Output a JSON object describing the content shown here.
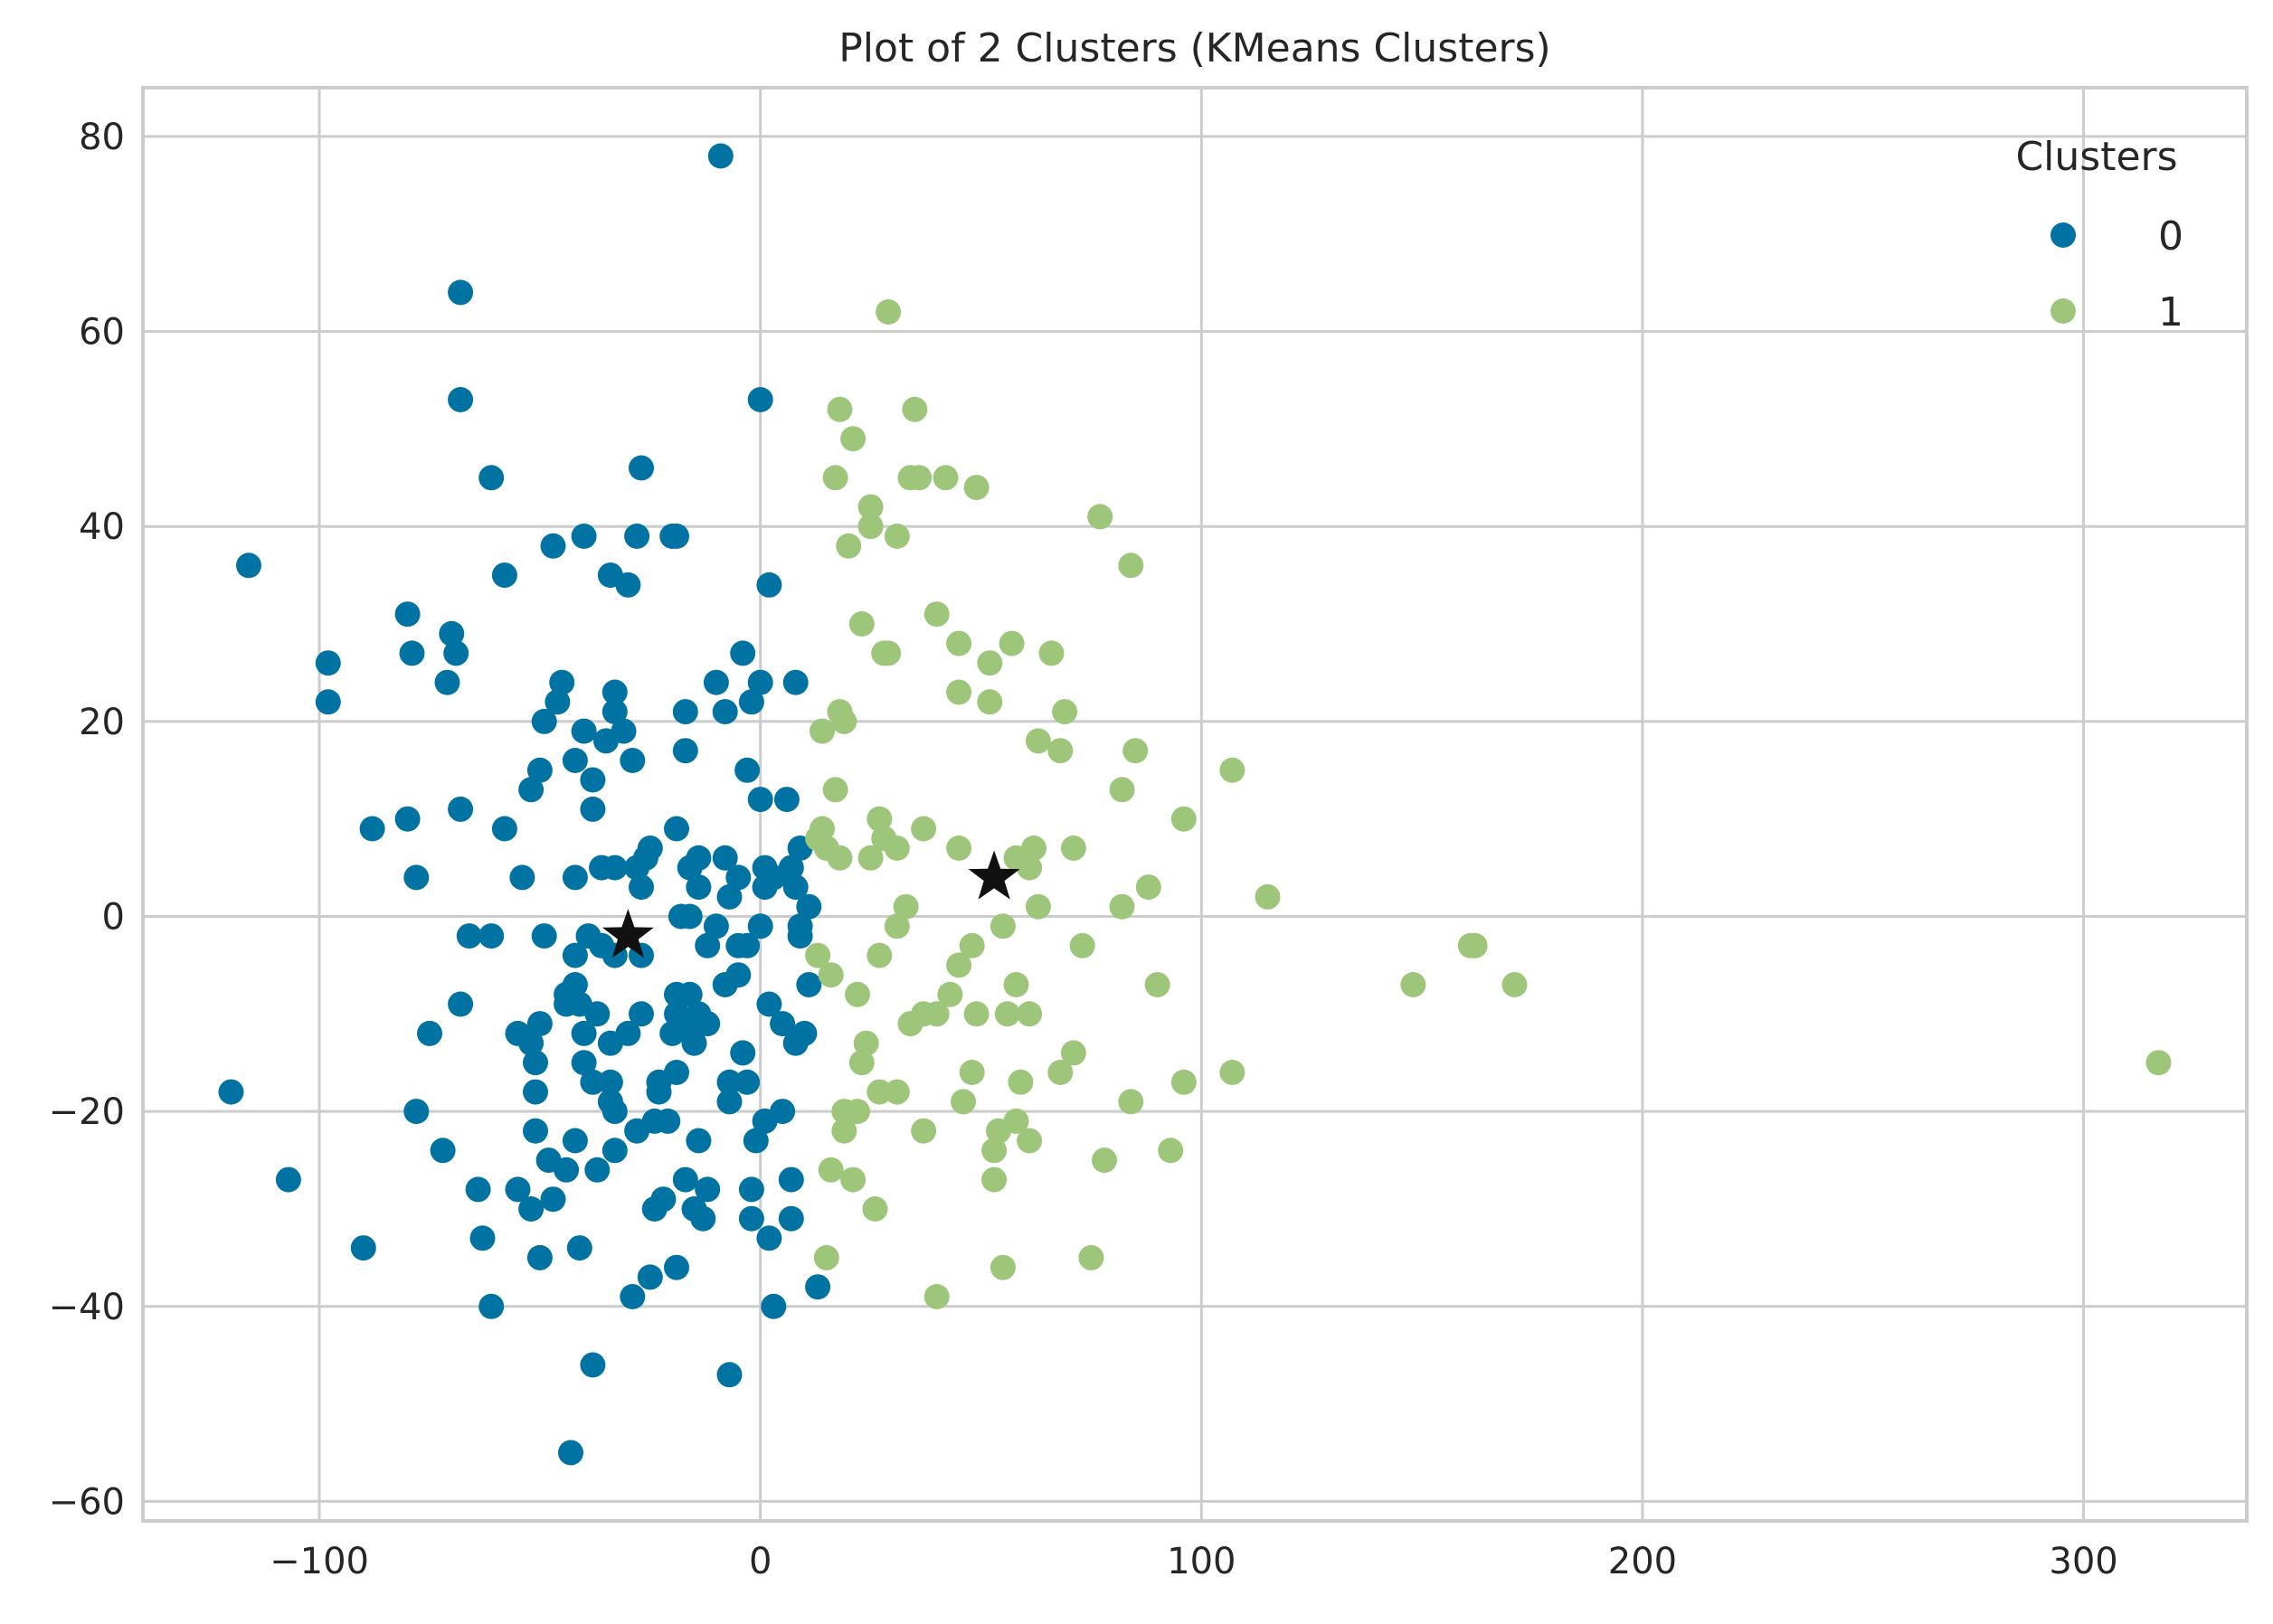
{
  "chart_data": {
    "type": "scatter",
    "title": "Plot of 2 Clusters (KMeans Clusters)",
    "xlabel": "",
    "ylabel": "",
    "xlim": [
      -140,
      337
    ],
    "ylim": [
      -62,
      85
    ],
    "xticks": [
      -100,
      0,
      100,
      200,
      300
    ],
    "yticks": [
      -60,
      -40,
      -20,
      0,
      20,
      40,
      60,
      80
    ],
    "xtick_labels": [
      "−100",
      "0",
      "100",
      "200",
      "300"
    ],
    "ytick_labels": [
      "−60",
      "−40",
      "−20",
      "0",
      "20",
      "40",
      "60",
      "80"
    ],
    "grid": true,
    "legend": {
      "title": "Clusters",
      "placement": "top-right",
      "entries": [
        "0",
        "1"
      ]
    },
    "colors": {
      "cluster_0": "#0173a3",
      "cluster_1": "#9ec67a",
      "centroid": "#111111",
      "grid": "#cccccc",
      "text": "#262626"
    },
    "series": [
      {
        "name": "0",
        "points": [
          [
            -9,
            78
          ],
          [
            -68,
            64
          ],
          [
            -68,
            53
          ],
          [
            0,
            53
          ],
          [
            -61,
            45
          ],
          [
            -27,
            46
          ],
          [
            -116,
            36
          ],
          [
            -58,
            35
          ],
          [
            -47,
            38
          ],
          [
            -40,
            39
          ],
          [
            -34,
            35
          ],
          [
            -30,
            34
          ],
          [
            -28,
            39
          ],
          [
            -20,
            39
          ],
          [
            -19,
            39
          ],
          [
            2,
            34
          ],
          [
            -80,
            31
          ],
          [
            -70,
            29
          ],
          [
            -69,
            27
          ],
          [
            -79,
            27
          ],
          [
            -71,
            24
          ],
          [
            -98,
            26
          ],
          [
            -98,
            22
          ],
          [
            -4,
            27
          ],
          [
            -45,
            24
          ],
          [
            -33,
            23
          ],
          [
            -10,
            24
          ],
          [
            -2,
            22
          ],
          [
            0,
            24
          ],
          [
            8,
            24
          ],
          [
            -46,
            22
          ],
          [
            -49,
            20
          ],
          [
            -40,
            19
          ],
          [
            -33,
            21
          ],
          [
            -17,
            21
          ],
          [
            -31,
            19
          ],
          [
            -8,
            21
          ],
          [
            -35,
            18
          ],
          [
            -42,
            16
          ],
          [
            -50,
            15
          ],
          [
            -29,
            16
          ],
          [
            -17,
            17
          ],
          [
            -3,
            15
          ],
          [
            -52,
            13
          ],
          [
            -38,
            14
          ],
          [
            -38,
            11
          ],
          [
            0,
            12
          ],
          [
            6,
            12
          ],
          [
            -68,
            11
          ],
          [
            -80,
            10
          ],
          [
            -88,
            9
          ],
          [
            -58,
            9
          ],
          [
            -78,
            4
          ],
          [
            -54,
            4
          ],
          [
            -42,
            4
          ],
          [
            -19,
            9
          ],
          [
            -25,
            7
          ],
          [
            -36,
            5
          ],
          [
            -33,
            5
          ],
          [
            -28,
            5
          ],
          [
            -26,
            6
          ],
          [
            -14,
            6
          ],
          [
            -8,
            6
          ],
          [
            -16,
            5
          ],
          [
            -5,
            4
          ],
          [
            1,
            5
          ],
          [
            3,
            4
          ],
          [
            7,
            5
          ],
          [
            9,
            7
          ],
          [
            -14,
            3
          ],
          [
            -7,
            2
          ],
          [
            1,
            3
          ],
          [
            8,
            3
          ],
          [
            -27,
            3
          ],
          [
            11,
            1
          ],
          [
            -18,
            0
          ],
          [
            -16,
            0
          ],
          [
            -10,
            -1
          ],
          [
            0,
            -1
          ],
          [
            9,
            -1
          ],
          [
            -66,
            -2
          ],
          [
            -61,
            -2
          ],
          [
            -49,
            -2
          ],
          [
            -39,
            -2
          ],
          [
            -36,
            -3
          ],
          [
            -33,
            -4
          ],
          [
            -27,
            -4
          ],
          [
            -12,
            -3
          ],
          [
            -5,
            -3
          ],
          [
            -3,
            -3
          ],
          [
            9,
            -2
          ],
          [
            -42,
            -4
          ],
          [
            -42,
            -7
          ],
          [
            -44,
            -8
          ],
          [
            -41,
            -9
          ],
          [
            -68,
            -9
          ],
          [
            -75,
            -12
          ],
          [
            -55,
            -12
          ],
          [
            -50,
            -11
          ],
          [
            -44,
            -9
          ],
          [
            -37,
            -10
          ],
          [
            -27,
            -10
          ],
          [
            -19,
            -8
          ],
          [
            -16,
            -8
          ],
          [
            -14,
            -10
          ],
          [
            -8,
            -7
          ],
          [
            -5,
            -6
          ],
          [
            2,
            -9
          ],
          [
            11,
            -7
          ],
          [
            -52,
            -13
          ],
          [
            -51,
            -15
          ],
          [
            -40,
            -12
          ],
          [
            -30,
            -12
          ],
          [
            -34,
            -13
          ],
          [
            -20,
            -12
          ],
          [
            -15,
            -13
          ],
          [
            -12,
            -11
          ],
          [
            -16,
            -11
          ],
          [
            -19,
            -10
          ],
          [
            5,
            -11
          ],
          [
            8,
            -13
          ],
          [
            10,
            -12
          ],
          [
            -40,
            -15
          ],
          [
            -38,
            -17
          ],
          [
            -34,
            -17
          ],
          [
            -23,
            -17
          ],
          [
            -19,
            -16
          ],
          [
            -4,
            -14
          ],
          [
            -51,
            -18
          ],
          [
            -34,
            -19
          ],
          [
            -23,
            -18
          ],
          [
            -78,
            -20
          ],
          [
            -33,
            -20
          ],
          [
            -21,
            -21
          ],
          [
            -7,
            -17
          ],
          [
            -3,
            -17
          ],
          [
            -7,
            -19
          ],
          [
            1,
            -21
          ],
          [
            5,
            -20
          ],
          [
            -120,
            -18
          ],
          [
            -72,
            -24
          ],
          [
            -51,
            -22
          ],
          [
            -42,
            -23
          ],
          [
            -33,
            -24
          ],
          [
            -28,
            -22
          ],
          [
            -24,
            -21
          ],
          [
            -14,
            -23
          ],
          [
            -1,
            -23
          ],
          [
            -48,
            -25
          ],
          [
            -44,
            -26
          ],
          [
            -37,
            -26
          ],
          [
            -17,
            -27
          ],
          [
            -107,
            -27
          ],
          [
            -64,
            -28
          ],
          [
            -55,
            -28
          ],
          [
            -47,
            -29
          ],
          [
            -24,
            -30
          ],
          [
            -22,
            -29
          ],
          [
            -15,
            -30
          ],
          [
            -12,
            -28
          ],
          [
            -2,
            -28
          ],
          [
            7,
            -27
          ],
          [
            -52,
            -30
          ],
          [
            -13,
            -31
          ],
          [
            -2,
            -31
          ],
          [
            7,
            -31
          ],
          [
            -90,
            -34
          ],
          [
            -63,
            -33
          ],
          [
            -50,
            -35
          ],
          [
            -41,
            -34
          ],
          [
            2,
            -33
          ],
          [
            -25,
            -37
          ],
          [
            -29,
            -39
          ],
          [
            -19,
            -36
          ],
          [
            13,
            -38
          ],
          [
            -61,
            -40
          ],
          [
            3,
            -40
          ],
          [
            -38,
            -46
          ],
          [
            -7,
            -47
          ],
          [
            -43,
            -55
          ]
        ]
      },
      {
        "name": "1",
        "points": [
          [
            29,
            62
          ],
          [
            18,
            52
          ],
          [
            35,
            52
          ],
          [
            21,
            49
          ],
          [
            34,
            45
          ],
          [
            36,
            45
          ],
          [
            42,
            45
          ],
          [
            49,
            44
          ],
          [
            77,
            41
          ],
          [
            17,
            45
          ],
          [
            25,
            42
          ],
          [
            20,
            38
          ],
          [
            25,
            40
          ],
          [
            31,
            39
          ],
          [
            84,
            36
          ],
          [
            40,
            31
          ],
          [
            23,
            30
          ],
          [
            45,
            28
          ],
          [
            28,
            27
          ],
          [
            29,
            27
          ],
          [
            57,
            28
          ],
          [
            66,
            27
          ],
          [
            52,
            26
          ],
          [
            45,
            23
          ],
          [
            52,
            22
          ],
          [
            18,
            21
          ],
          [
            69,
            21
          ],
          [
            14,
            19
          ],
          [
            19,
            20
          ],
          [
            63,
            18
          ],
          [
            68,
            17
          ],
          [
            85,
            17
          ],
          [
            107,
            15
          ],
          [
            17,
            13
          ],
          [
            82,
            13
          ],
          [
            96,
            10
          ],
          [
            14,
            9
          ],
          [
            13,
            8
          ],
          [
            27,
            10
          ],
          [
            28,
            8
          ],
          [
            31,
            7
          ],
          [
            37,
            9
          ],
          [
            15,
            7
          ],
          [
            18,
            6
          ],
          [
            25,
            6
          ],
          [
            45,
            7
          ],
          [
            58,
            6
          ],
          [
            61,
            5
          ],
          [
            62,
            7
          ],
          [
            71,
            7
          ],
          [
            88,
            3
          ],
          [
            33,
            1
          ],
          [
            31,
            -1
          ],
          [
            63,
            1
          ],
          [
            82,
            1
          ],
          [
            115,
            2
          ],
          [
            55,
            -1
          ],
          [
            48,
            -3
          ],
          [
            27,
            -4
          ],
          [
            13,
            -4
          ],
          [
            16,
            -6
          ],
          [
            45,
            -5
          ],
          [
            73,
            -3
          ],
          [
            162,
            -3
          ],
          [
            161,
            -3
          ],
          [
            148,
            -7
          ],
          [
            171,
            -7
          ],
          [
            58,
            -7
          ],
          [
            90,
            -7
          ],
          [
            22,
            -8
          ],
          [
            43,
            -8
          ],
          [
            34,
            -11
          ],
          [
            37,
            -10
          ],
          [
            40,
            -10
          ],
          [
            49,
            -10
          ],
          [
            56,
            -10
          ],
          [
            61,
            -10
          ],
          [
            24,
            -13
          ],
          [
            23,
            -15
          ],
          [
            71,
            -14
          ],
          [
            68,
            -16
          ],
          [
            48,
            -16
          ],
          [
            107,
            -16
          ],
          [
            317,
            -15
          ],
          [
            27,
            -18
          ],
          [
            31,
            -18
          ],
          [
            46,
            -19
          ],
          [
            59,
            -17
          ],
          [
            96,
            -17
          ],
          [
            19,
            -20
          ],
          [
            22,
            -20
          ],
          [
            58,
            -21
          ],
          [
            19,
            -22
          ],
          [
            37,
            -22
          ],
          [
            54,
            -22
          ],
          [
            61,
            -23
          ],
          [
            84,
            -19
          ],
          [
            53,
            -24
          ],
          [
            78,
            -25
          ],
          [
            93,
            -24
          ],
          [
            16,
            -26
          ],
          [
            21,
            -27
          ],
          [
            53,
            -27
          ],
          [
            26,
            -30
          ],
          [
            15,
            -35
          ],
          [
            55,
            -36
          ],
          [
            75,
            -35
          ],
          [
            40,
            -39
          ]
        ]
      }
    ],
    "centroids": [
      [
        -30,
        -2
      ],
      [
        53,
        4
      ]
    ]
  }
}
